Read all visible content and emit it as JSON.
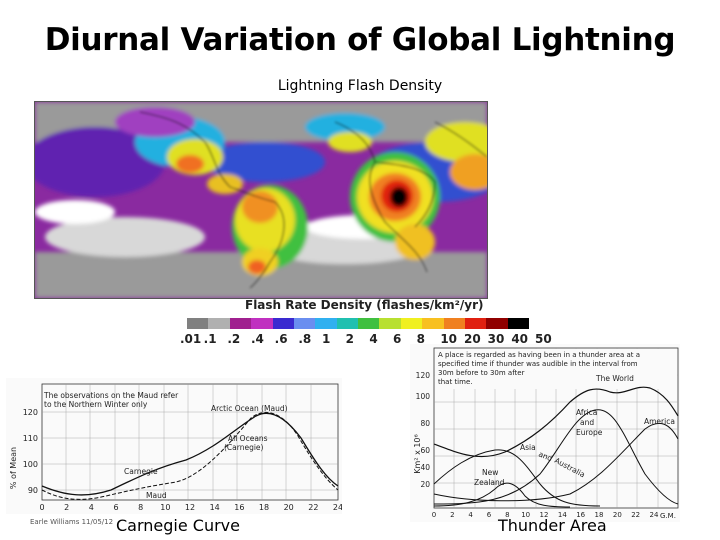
{
  "slide": {
    "title": "Diurnal Variation of Global Lightning",
    "subtitle": "Lightning Flash Density",
    "footer": "Earle Williams 11/05/12",
    "caption_left": "Carnegie Curve",
    "caption_right": "Thunder Area"
  },
  "map_legend": {
    "title": "Flash  Rate  Density  (flashes/km²/yr)",
    "ticks": [
      ".01",
      ".1",
      ".2",
      ".4",
      ".6",
      ".8",
      "1",
      "2",
      "4",
      "6",
      "8",
      "10",
      "20",
      "30",
      "40",
      "50"
    ],
    "colors": [
      "#808080",
      "#b0b0b0",
      "#a0208f",
      "#c030c0",
      "#3a2ad0",
      "#6a8ef0",
      "#30b0f0",
      "#20c0b0",
      "#40c040",
      "#b8e030",
      "#f0f020",
      "#f8c020",
      "#f08020",
      "#e02010",
      "#900000",
      "#000000"
    ]
  },
  "carnegie_chart": {
    "header_text": [
      "The observations on the Maud refer",
      "to the Northern Winter only"
    ],
    "ylabel": "% of Mean",
    "y_ticks": [
      "90",
      "100",
      "110",
      "120"
    ],
    "x_ticks": [
      "0",
      "2",
      "4",
      "6",
      "8",
      "10",
      "12",
      "14",
      "16",
      "18",
      "20",
      "22",
      "24"
    ],
    "labels": {
      "arctic": "Arctic Ocean (Maud)",
      "all_oceans": "All Oceans",
      "all_oceans_sub": "(Carnegie)",
      "carnegie": "Carnegie",
      "maud": "Maud"
    }
  },
  "thunder_chart": {
    "header_text": [
      "A place is regarded as having been in a thunder area at a",
      "specified time if thunder was audible in the interval from",
      "30m before to 30m after",
      "that time."
    ],
    "ylabel": "Km² x 10⁶",
    "y_ticks": [
      "20",
      "40",
      "60",
      "80",
      "100",
      "120"
    ],
    "x_ticks": [
      "0",
      "2",
      "4",
      "6",
      "8",
      "10",
      "12",
      "14",
      "16",
      "18",
      "20",
      "22",
      "24"
    ],
    "x_unit": "G.M.",
    "labels": {
      "world": "The World",
      "africa": "Africa",
      "and": "and",
      "europe": "Europe",
      "america": "America",
      "asia": "Asia",
      "and2": "and",
      "australia": "Australia",
      "newz1": "New",
      "newz2": "Zealand"
    }
  }
}
